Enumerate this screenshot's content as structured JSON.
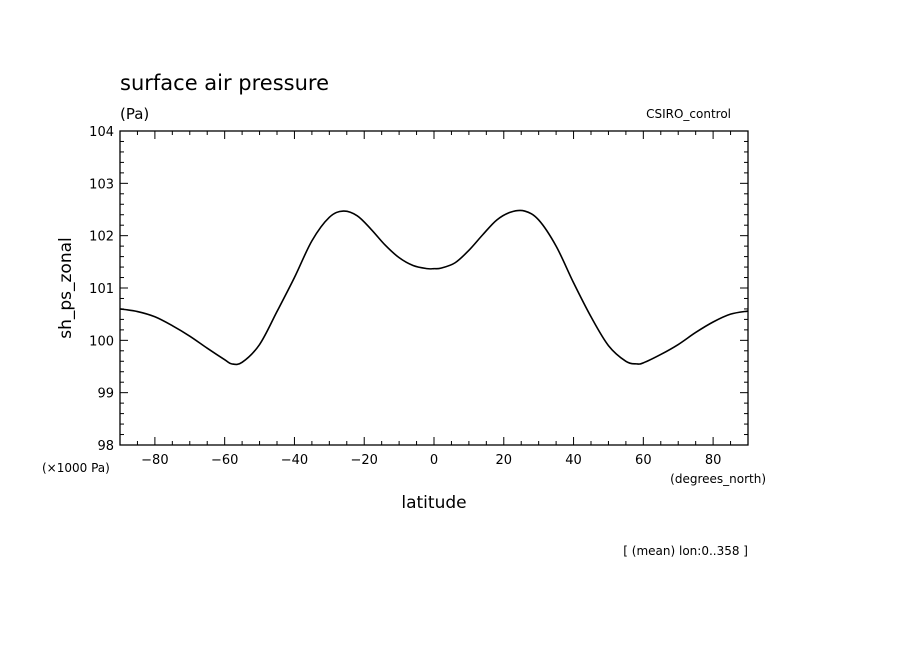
{
  "chart_data": {
    "type": "line",
    "title": "surface air pressure",
    "subtitle": "(Pa)",
    "source_label": "CSIRO_control",
    "ylabel": "sh_ps_zonal",
    "xlabel": "latitude",
    "y_scale_note": "(×1000 Pa)",
    "x_units_note": "(degrees_north)",
    "footnote": "[ (mean) lon:0..358 ]",
    "xlim": [
      -90,
      90
    ],
    "ylim": [
      98,
      104
    ],
    "x_ticks": [
      -80,
      -60,
      -40,
      -20,
      0,
      20,
      40,
      60,
      80
    ],
    "x_tick_labels": [
      "−80",
      "−60",
      "−40",
      "−20",
      "0",
      "20",
      "40",
      "60",
      "80"
    ],
    "y_ticks": [
      98,
      99,
      100,
      101,
      102,
      103,
      104
    ],
    "y_tick_labels": [
      "98",
      "99",
      "100",
      "101",
      "102",
      "103",
      "104"
    ],
    "grid": false,
    "series": [
      {
        "x": [
          -90,
          -85,
          -80,
          -75,
          -70,
          -65,
          -60,
          -58,
          -55,
          -50,
          -45,
          -40,
          -35,
          -30,
          -26,
          -22,
          -18,
          -14,
          -10,
          -6,
          -2,
          0,
          2,
          6,
          10,
          14,
          18,
          22,
          26,
          30,
          35,
          40,
          45,
          50,
          55,
          58,
          60,
          65,
          70,
          75,
          80,
          85,
          90
        ],
        "y": [
          100.6,
          100.55,
          100.45,
          100.28,
          100.08,
          99.85,
          99.63,
          99.55,
          99.58,
          99.92,
          100.55,
          101.2,
          101.9,
          102.35,
          102.47,
          102.38,
          102.12,
          101.82,
          101.58,
          101.43,
          101.37,
          101.37,
          101.38,
          101.48,
          101.72,
          102.02,
          102.3,
          102.45,
          102.47,
          102.3,
          101.8,
          101.1,
          100.45,
          99.9,
          99.6,
          99.55,
          99.57,
          99.73,
          99.92,
          100.15,
          100.35,
          100.5,
          100.56
        ]
      }
    ]
  }
}
